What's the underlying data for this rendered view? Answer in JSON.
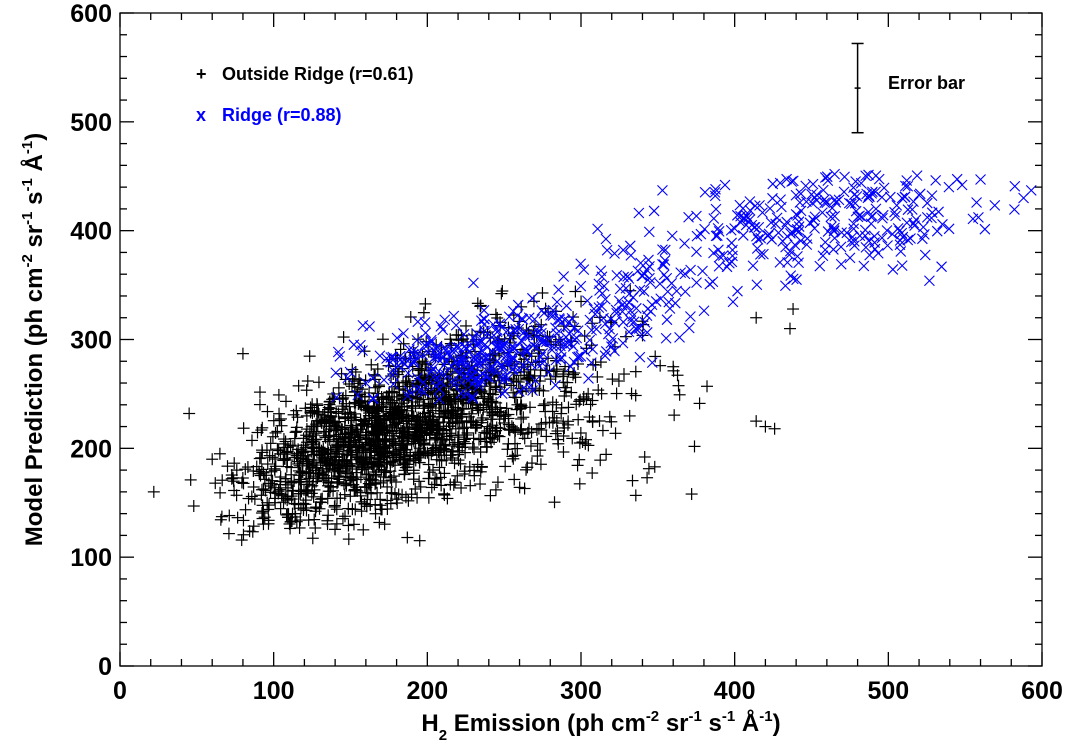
{
  "chart_data": {
    "type": "scatter",
    "xlabel_parts": [
      "H",
      "2",
      " Emission (ph cm",
      "-2",
      " sr",
      "-1",
      " s",
      "-1",
      " Å",
      "-1",
      ")"
    ],
    "ylabel_parts": [
      "Model Prediction (ph cm",
      "-2",
      " sr",
      "-1",
      " s",
      "-1",
      " Å",
      "-1",
      ")"
    ],
    "xlim": [
      0,
      600
    ],
    "ylim": [
      0,
      600
    ],
    "xticks": [
      0,
      100,
      200,
      300,
      400,
      500,
      600
    ],
    "yticks": [
      0,
      100,
      200,
      300,
      400,
      500,
      600
    ],
    "grid": false,
    "legend_position": "top-left",
    "series": [
      {
        "name": "Outside Ridge (r=0.61)",
        "symbol": "+",
        "legend_symbol": "+",
        "color": "#000000",
        "clusters": [
          {
            "count": 1250,
            "cx": 160,
            "cy": 205,
            "sx": 40,
            "sy": 38,
            "rho": 0.55,
            "xmin": 65,
            "xmax": 380,
            "ymin": 112,
            "ymax": 345
          },
          {
            "count": 520,
            "cx": 225,
            "cy": 245,
            "sx": 38,
            "sy": 45,
            "rho": 0.45,
            "xmin": 80,
            "xmax": 400,
            "ymin": 115,
            "ymax": 345
          },
          {
            "count": 130,
            "cx": 290,
            "cy": 245,
            "sx": 35,
            "sy": 50,
            "rho": 0.3,
            "xmin": 230,
            "xmax": 400,
            "ymin": 150,
            "ymax": 330
          }
        ],
        "extra_points": [
          {
            "x": 22,
            "y": 160
          },
          {
            "x": 45,
            "y": 232
          },
          {
            "x": 46,
            "y": 171
          },
          {
            "x": 48,
            "y": 147
          },
          {
            "x": 60,
            "y": 190
          },
          {
            "x": 62,
            "y": 168
          },
          {
            "x": 65,
            "y": 195
          },
          {
            "x": 80,
            "y": 287
          },
          {
            "x": 76,
            "y": 180
          },
          {
            "x": 372,
            "y": 158
          },
          {
            "x": 414,
            "y": 225
          },
          {
            "x": 420,
            "y": 220
          },
          {
            "x": 426,
            "y": 218
          },
          {
            "x": 436,
            "y": 310
          },
          {
            "x": 438,
            "y": 328
          },
          {
            "x": 414,
            "y": 320
          },
          {
            "x": 382,
            "y": 257
          },
          {
            "x": 360,
            "y": 275
          },
          {
            "x": 348,
            "y": 183
          },
          {
            "x": 343,
            "y": 173
          }
        ]
      },
      {
        "name": "Ridge (r=0.88)",
        "symbol": "x",
        "legend_symbol": "x",
        "color": "#0000ff",
        "clusters": [
          {
            "count": 300,
            "cx": 235,
            "cy": 285,
            "sx": 42,
            "sy": 22,
            "rho": 0.45,
            "xmin": 140,
            "xmax": 350,
            "ymin": 245,
            "ymax": 345
          },
          {
            "count": 140,
            "cx": 340,
            "cy": 345,
            "sx": 38,
            "sy": 35,
            "rho": 0.6,
            "xmin": 280,
            "xmax": 420,
            "ymin": 265,
            "ymax": 420
          },
          {
            "count": 250,
            "cx": 460,
            "cy": 410,
            "sx": 55,
            "sy": 26,
            "rho": 0.3,
            "xmin": 375,
            "xmax": 595,
            "ymin": 345,
            "ymax": 452
          }
        ],
        "extra_points": [
          {
            "x": 230,
            "y": 352
          },
          {
            "x": 160,
            "y": 260
          },
          {
            "x": 593,
            "y": 437
          },
          {
            "x": 588,
            "y": 430
          },
          {
            "x": 560,
            "y": 447
          },
          {
            "x": 548,
            "y": 442
          },
          {
            "x": 353,
            "y": 437
          },
          {
            "x": 317,
            "y": 382
          }
        ]
      }
    ],
    "annotations": [
      {
        "text": "Error bar",
        "x": 480,
        "y_low": 490,
        "y_high": 572,
        "y_mid": 531
      }
    ],
    "colors": {
      "axis": "#000000",
      "outside": "#000000",
      "ridge": "#0000ff"
    }
  }
}
